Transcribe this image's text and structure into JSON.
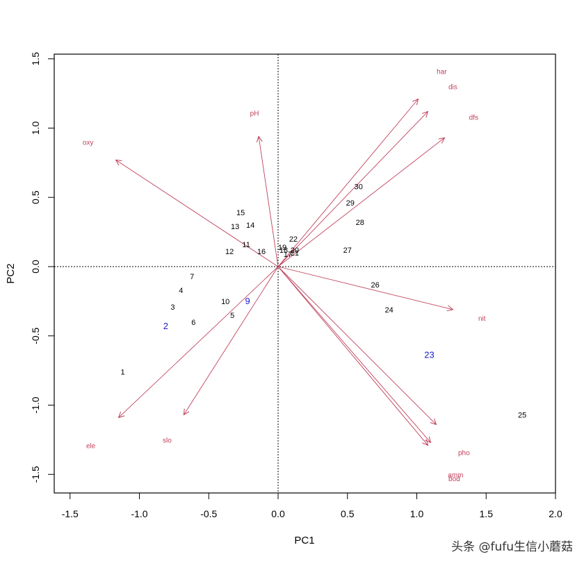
{
  "chart_data": {
    "type": "scatter",
    "subtype": "PCA biplot",
    "title": "",
    "xlabel": "PC1",
    "ylabel": "PC2",
    "xlim": [
      -1.6,
      2.0
    ],
    "ylim": [
      -1.63,
      1.53
    ],
    "xticks": [
      -1.5,
      -1.0,
      -0.5,
      0.0,
      0.5,
      1.0,
      1.5,
      2.0
    ],
    "yticks": [
      -1.5,
      -1.0,
      -0.5,
      0.0,
      0.5,
      1.0,
      1.5
    ],
    "xtick_labels": [
      "-1.5",
      "-1.0",
      "-0.5",
      "0.0",
      "0.5",
      "1.0",
      "1.5",
      "2.0"
    ],
    "ytick_labels": [
      "-1.5",
      "-1.0",
      "-0.5",
      "0.0",
      "0.5",
      "1.0",
      "1.5"
    ],
    "grid": false,
    "reference_lines": {
      "x0": "dotted",
      "y0": "dotted"
    },
    "colors": {
      "samples": "#000000",
      "highlight": "#0000cc",
      "loadings": "#c0405a"
    },
    "samples": [
      {
        "label": "1",
        "x": -1.12,
        "y": -0.76,
        "color": "#000000"
      },
      {
        "label": "2",
        "x": -0.81,
        "y": -0.43,
        "color": "#1a1acc"
      },
      {
        "label": "3",
        "x": -0.76,
        "y": -0.29,
        "color": "#000000"
      },
      {
        "label": "4",
        "x": -0.7,
        "y": -0.17,
        "color": "#000000"
      },
      {
        "label": "5",
        "x": -0.33,
        "y": -0.35,
        "color": "#000000"
      },
      {
        "label": "6",
        "x": -0.61,
        "y": -0.4,
        "color": "#000000"
      },
      {
        "label": "7",
        "x": -0.62,
        "y": -0.07,
        "color": "#000000"
      },
      {
        "label": "9",
        "x": -0.22,
        "y": -0.25,
        "color": "#1a1acc"
      },
      {
        "label": "10",
        "x": -0.38,
        "y": -0.25,
        "color": "#000000"
      },
      {
        "label": "11",
        "x": -0.23,
        "y": 0.16,
        "color": "#000000"
      },
      {
        "label": "12",
        "x": -0.35,
        "y": 0.11,
        "color": "#000000"
      },
      {
        "label": "13",
        "x": -0.31,
        "y": 0.29,
        "color": "#000000"
      },
      {
        "label": "14",
        "x": -0.2,
        "y": 0.3,
        "color": "#000000"
      },
      {
        "label": "15",
        "x": -0.27,
        "y": 0.39,
        "color": "#000000"
      },
      {
        "label": "16",
        "x": -0.12,
        "y": 0.11,
        "color": "#000000"
      },
      {
        "label": "17",
        "x": 0.07,
        "y": 0.09,
        "color": "#000000"
      },
      {
        "label": "18",
        "x": 0.04,
        "y": 0.12,
        "color": "#000000"
      },
      {
        "label": "19",
        "x": 0.03,
        "y": 0.14,
        "color": "#000000"
      },
      {
        "label": "20",
        "x": 0.12,
        "y": 0.12,
        "color": "#000000"
      },
      {
        "label": "21",
        "x": 0.12,
        "y": 0.1,
        "color": "#000000"
      },
      {
        "label": "22",
        "x": 0.11,
        "y": 0.2,
        "color": "#000000"
      },
      {
        "label": "23",
        "x": 1.09,
        "y": -0.64,
        "color": "#1a1acc"
      },
      {
        "label": "24",
        "x": 0.8,
        "y": -0.31,
        "color": "#000000"
      },
      {
        "label": "25",
        "x": 1.76,
        "y": -1.07,
        "color": "#000000"
      },
      {
        "label": "26",
        "x": 0.7,
        "y": -0.13,
        "color": "#000000"
      },
      {
        "label": "27",
        "x": 0.5,
        "y": 0.12,
        "color": "#000000"
      },
      {
        "label": "28",
        "x": 0.59,
        "y": 0.32,
        "color": "#000000"
      },
      {
        "label": "29",
        "x": 0.52,
        "y": 0.46,
        "color": "#000000"
      },
      {
        "label": "30",
        "x": 0.58,
        "y": 0.58,
        "color": "#000000"
      }
    ],
    "loadings": [
      {
        "label": "oxy",
        "x": -1.17,
        "y": 0.77,
        "label_x": -1.37,
        "label_y": 0.9
      },
      {
        "label": "pH",
        "x": -0.14,
        "y": 0.94,
        "label_x": -0.17,
        "label_y": 1.11
      },
      {
        "label": "har",
        "x": 1.01,
        "y": 1.21,
        "label_x": 1.18,
        "label_y": 1.41
      },
      {
        "label": "dis",
        "x": 1.08,
        "y": 1.12,
        "label_x": 1.26,
        "label_y": 1.3
      },
      {
        "label": "dfs",
        "x": 1.2,
        "y": 0.93,
        "label_x": 1.41,
        "label_y": 1.08
      },
      {
        "label": "nit",
        "x": 1.26,
        "y": -0.31,
        "label_x": 1.47,
        "label_y": -0.37
      },
      {
        "label": "pho",
        "x": 1.14,
        "y": -1.14,
        "label_x": 1.34,
        "label_y": -1.34
      },
      {
        "label": "amm",
        "x": 1.1,
        "y": -1.27,
        "label_x": 1.28,
        "label_y": -1.5
      },
      {
        "label": "bod",
        "x": 1.08,
        "y": -1.29,
        "label_x": 1.27,
        "label_y": -1.53
      },
      {
        "label": "ele",
        "x": -1.15,
        "y": -1.09,
        "label_x": -1.35,
        "label_y": -1.29
      },
      {
        "label": "slo",
        "x": -0.68,
        "y": -1.07,
        "label_x": -0.8,
        "label_y": -1.25
      }
    ]
  },
  "watermark": "头条 @fufu生信小蘑菇"
}
